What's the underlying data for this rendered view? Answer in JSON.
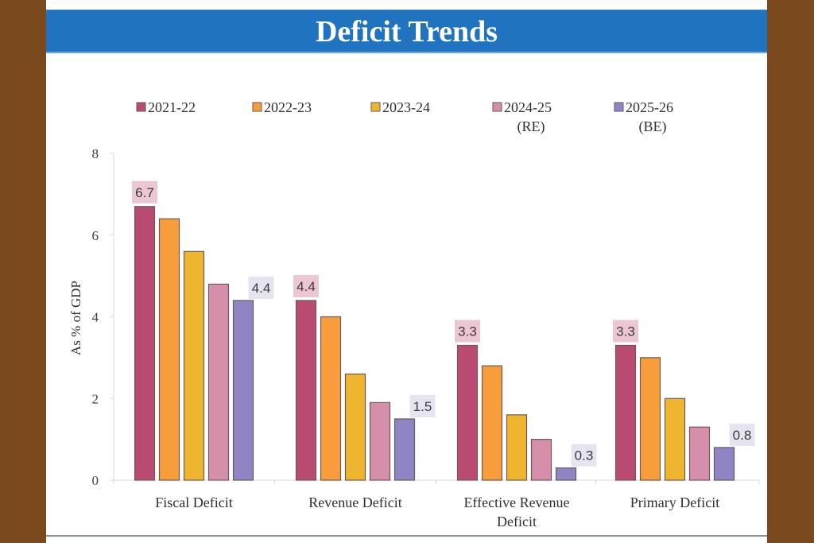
{
  "page": {
    "title": "Deficit Trends",
    "colors": {
      "background": "#7a4a1e",
      "title_band": "#1f73bf"
    }
  },
  "chart_data": {
    "type": "bar",
    "title": "Deficit Trends",
    "xlabel": "",
    "ylabel": "As % of GDP",
    "ylim": [
      0,
      8
    ],
    "yticks": [
      "0",
      "2",
      "4",
      "6",
      "8"
    ],
    "grid": false,
    "legend_position": "top",
    "categories": [
      [
        "Fiscal Deficit"
      ],
      [
        "Revenue Deficit"
      ],
      [
        "Effective Revenue",
        "Deficit"
      ],
      [
        "Primary Deficit"
      ]
    ],
    "category_names": [
      "Fiscal Deficit",
      "Revenue Deficit",
      "Effective Revenue Deficit",
      "Primary Deficit"
    ],
    "series": [
      {
        "name": "2021-22",
        "label_lines": [
          "2021-22"
        ],
        "color": "#b94a72",
        "values": [
          6.7,
          4.4,
          3.3,
          3.3
        ]
      },
      {
        "name": "2022-23",
        "label_lines": [
          "2022-23"
        ],
        "color": "#f79d3c",
        "values": [
          6.4,
          4.0,
          2.8,
          3.0
        ]
      },
      {
        "name": "2023-24",
        "label_lines": [
          "2023-24"
        ],
        "color": "#efb52f",
        "values": [
          5.6,
          2.6,
          1.6,
          2.0
        ]
      },
      {
        "name": "2024-25 (RE)",
        "label_lines": [
          "2024-25",
          "(RE)"
        ],
        "color": "#d68fab",
        "values": [
          4.8,
          1.9,
          1.0,
          1.3
        ]
      },
      {
        "name": "2025-26 (BE)",
        "label_lines": [
          "2025-26",
          "(BE)"
        ],
        "color": "#8f84c4",
        "values": [
          4.4,
          1.5,
          0.3,
          0.8
        ]
      }
    ],
    "data_labels": [
      {
        "series": 0,
        "category": 0,
        "text": "6.7",
        "bg": "#ecc6d3"
      },
      {
        "series": 4,
        "category": 0,
        "text": "4.4",
        "bg": "#e6e4f1"
      },
      {
        "series": 0,
        "category": 1,
        "text": "4.4",
        "bg": "#ecc6d3"
      },
      {
        "series": 4,
        "category": 1,
        "text": "1.5",
        "bg": "#e6e4f1"
      },
      {
        "series": 0,
        "category": 2,
        "text": "3.3",
        "bg": "#ecc6d3"
      },
      {
        "series": 4,
        "category": 2,
        "text": "0.3",
        "bg": "#e6e4f1"
      },
      {
        "series": 0,
        "category": 3,
        "text": "3.3",
        "bg": "#ecc6d3"
      },
      {
        "series": 4,
        "category": 3,
        "text": "0.8",
        "bg": "#e6e4f1"
      }
    ]
  }
}
